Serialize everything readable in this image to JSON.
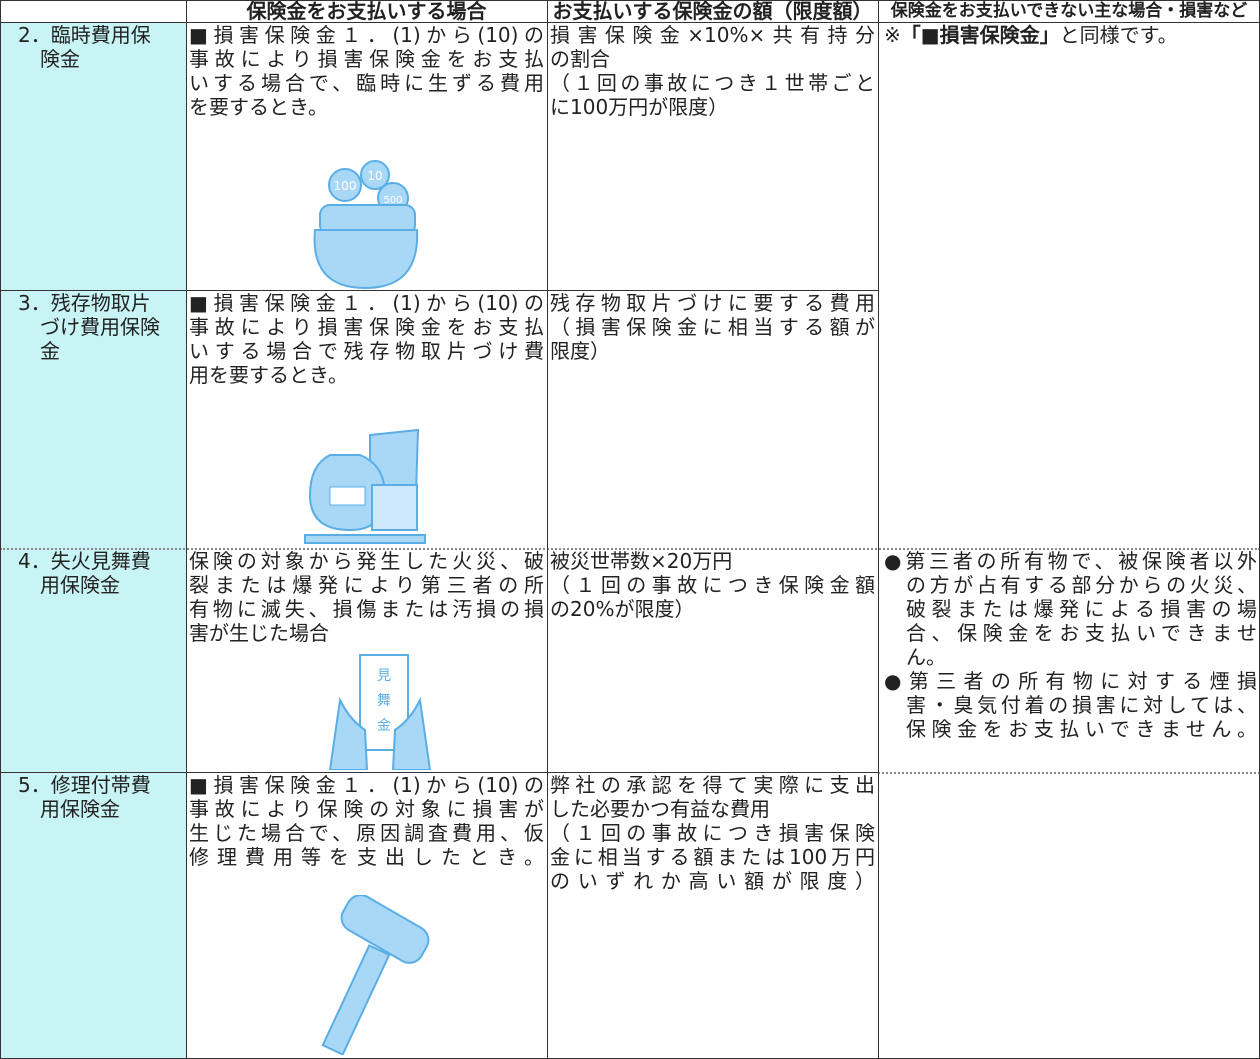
{
  "table": {
    "header": [
      "保険金をお支払いする場合",
      "お支払いする保険金の額（限度額）",
      "保険金をお支払いできない主な場合・損害など"
    ],
    "rows": [
      {
        "name": [
          "2．臨時費用保",
          "険金"
        ],
        "condition": [
          "■損害保険金１．(1)から(10)の",
          "事故により損害保険金をお支払",
          "いする場合で、臨時に生ずる費用",
          "を要するとき。"
        ],
        "amount": [
          "損害保険金×10%×共有持分",
          "の割合",
          "（１回の事故につき１世帯ごと",
          "に100万円が限度）"
        ],
        "exclusion": {
          "prefix": "※",
          "bold": "「■損害保険金」",
          "suffix": "と同様です。"
        },
        "illustration_text": [
          "100",
          "10",
          "500"
        ]
      },
      {
        "name": [
          "3．残存物取片",
          "づけ費用保険",
          "金"
        ],
        "condition": [
          "■損害保険金１．(1)から(10)の",
          "事故により損害保険金をお支払",
          "いする場合で残存物取片づけ費",
          "用を要するとき。"
        ],
        "amount": [
          "残存物取片づけに要する費用",
          "（損害保険金に相当する額が",
          "限度）"
        ]
      },
      {
        "name": [
          "4．失火見舞費",
          "用保険金"
        ],
        "condition": [
          "保険の対象から発生した火災、破",
          "裂または爆発により第三者の所",
          "有物に滅失、損傷または汚損の損",
          "害が生じた場合"
        ],
        "amount": [
          "被災世帯数×20万円",
          "（１回の事故につき保険金額",
          "の20%が限度）"
        ],
        "exclusion_items": [
          [
            "●第三者の所有物で、被保険者以外",
            "の方が占有する部分からの火災、",
            "破裂または爆発による損害の場",
            "合、保険金をお支払いできませ",
            "ん。"
          ],
          [
            "●第三者の所有物に対する煙損",
            "害・臭気付着の損害に対しては、",
            "保険金をお支払いできません。"
          ]
        ],
        "illustration_text": [
          "見",
          "舞",
          "金"
        ]
      },
      {
        "name": [
          "5．修理付帯費",
          "用保険金"
        ],
        "condition": [
          "■損害保険金１．(1)から(10)の",
          "事故により保険の対象に損害が",
          "生じた場合で、原因調査費用、仮",
          "修理費用等を支出したとき。"
        ],
        "amount": [
          "弊社の承認を得て実際に支出",
          "した必要かつ有益な費用",
          "（１回の事故につき損害保険",
          "金に相当する額または100万円",
          "のいずれか高い額が限度）"
        ]
      }
    ]
  }
}
